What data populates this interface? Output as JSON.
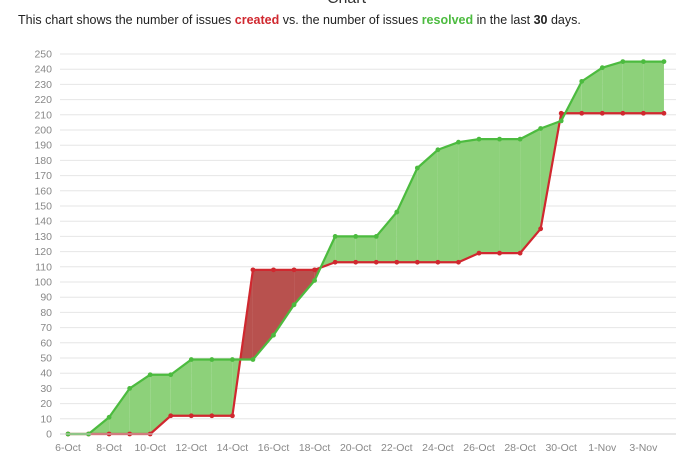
{
  "header": {
    "title_cut": "Chart"
  },
  "subtitle": {
    "part1": "This chart shows the number of issues ",
    "created": "created",
    "part2": " vs. the number of issues ",
    "resolved": "resolved",
    "part3": " in the last ",
    "days": "30",
    "part4": " days."
  },
  "colors": {
    "created": "#d0282f",
    "resolved": "#4cbb3f",
    "resolved_fill": "#8dd17a",
    "created_fill": "#b8514e"
  },
  "chart_data": {
    "type": "area",
    "title": "",
    "xlabel": "",
    "ylabel": "",
    "ylim": [
      0,
      250
    ],
    "yticks": [
      0,
      10,
      20,
      30,
      40,
      50,
      60,
      70,
      80,
      90,
      100,
      110,
      120,
      130,
      140,
      150,
      160,
      170,
      180,
      190,
      200,
      210,
      220,
      230,
      240,
      250
    ],
    "xtick_labels": [
      "6-Oct",
      "8-Oct",
      "10-Oct",
      "12-Oct",
      "14-Oct",
      "16-Oct",
      "18-Oct",
      "20-Oct",
      "22-Oct",
      "24-Oct",
      "26-Oct",
      "28-Oct",
      "30-Oct",
      "1-Nov",
      "3-Nov"
    ],
    "x": [
      "6-Oct",
      "7-Oct",
      "8-Oct",
      "9-Oct",
      "10-Oct",
      "11-Oct",
      "12-Oct",
      "13-Oct",
      "14-Oct",
      "15-Oct",
      "16-Oct",
      "17-Oct",
      "18-Oct",
      "19-Oct",
      "20-Oct",
      "21-Oct",
      "22-Oct",
      "23-Oct",
      "24-Oct",
      "25-Oct",
      "26-Oct",
      "27-Oct",
      "28-Oct",
      "29-Oct",
      "30-Oct",
      "31-Oct",
      "1-Nov",
      "2-Nov",
      "3-Nov",
      "4-Nov"
    ],
    "series": [
      {
        "name": "created",
        "values": [
          0,
          0,
          0,
          0,
          0,
          12,
          12,
          12,
          12,
          108,
          108,
          108,
          108,
          113,
          113,
          113,
          113,
          113,
          113,
          113,
          119,
          119,
          119,
          135,
          211,
          211,
          211,
          211,
          211,
          211
        ]
      },
      {
        "name": "resolved",
        "values": [
          0,
          0,
          11,
          30,
          39,
          39,
          49,
          49,
          49,
          49,
          65,
          85,
          101,
          130,
          130,
          130,
          146,
          175,
          187,
          192,
          194,
          194,
          194,
          201,
          206,
          232,
          241,
          245,
          245,
          245
        ]
      }
    ],
    "grid": true,
    "legend": "none"
  }
}
